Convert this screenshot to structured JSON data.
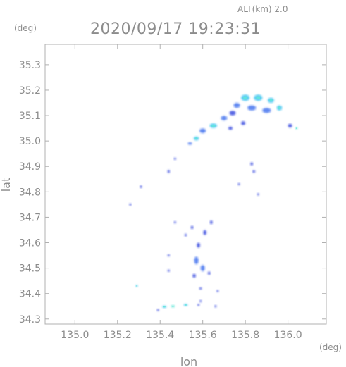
{
  "chart_data": {
    "type": "scatter",
    "title": "2020/09/17 19:23:31",
    "subtitle": "ALT(km)  2.0",
    "xlabel": "lon",
    "ylabel": "lat",
    "x_unit": "(deg)",
    "y_unit": "(deg)",
    "xlim": [
      134.86,
      136.18
    ],
    "ylim": [
      34.28,
      35.38
    ],
    "x_ticks": [
      135.0,
      135.2,
      135.4,
      135.6,
      135.8,
      136.0
    ],
    "x_tick_labels": [
      "135.0",
      "135.2",
      "135.4",
      "135.6",
      "135.8",
      "136.0"
    ],
    "y_ticks": [
      34.3,
      34.4,
      34.5,
      34.6,
      34.7,
      34.8,
      34.9,
      35.0,
      35.1,
      35.2,
      35.3
    ],
    "y_tick_labels": [
      "34.3",
      "34.4",
      "34.5",
      "34.6",
      "34.7",
      "34.8",
      "34.9",
      "35.0",
      "35.1",
      "35.2",
      "35.3"
    ],
    "grid": false,
    "colors": {
      "low": "#3d4fe0",
      "mid": "#4f7cf0",
      "high": "#46c7f2",
      "peak": "#63e6d8"
    },
    "cells": [
      {
        "lon": 135.8,
        "lat": 35.17,
        "sx": 0.04,
        "sy": 0.025,
        "level": "high"
      },
      {
        "lon": 135.86,
        "lat": 35.17,
        "sx": 0.04,
        "sy": 0.025,
        "level": "high"
      },
      {
        "lon": 135.92,
        "lat": 35.16,
        "sx": 0.03,
        "sy": 0.02,
        "level": "high"
      },
      {
        "lon": 135.96,
        "lat": 35.13,
        "sx": 0.025,
        "sy": 0.02,
        "level": "high"
      },
      {
        "lon": 135.9,
        "lat": 35.12,
        "sx": 0.04,
        "sy": 0.02,
        "level": "mid"
      },
      {
        "lon": 135.83,
        "lat": 35.13,
        "sx": 0.04,
        "sy": 0.02,
        "level": "mid"
      },
      {
        "lon": 135.76,
        "lat": 35.14,
        "sx": 0.03,
        "sy": 0.02,
        "level": "mid"
      },
      {
        "lon": 135.74,
        "lat": 35.11,
        "sx": 0.03,
        "sy": 0.018,
        "level": "low"
      },
      {
        "lon": 135.7,
        "lat": 35.09,
        "sx": 0.03,
        "sy": 0.018,
        "level": "mid"
      },
      {
        "lon": 135.65,
        "lat": 35.06,
        "sx": 0.035,
        "sy": 0.018,
        "level": "high"
      },
      {
        "lon": 135.6,
        "lat": 35.04,
        "sx": 0.03,
        "sy": 0.018,
        "level": "mid"
      },
      {
        "lon": 135.57,
        "lat": 35.01,
        "sx": 0.025,
        "sy": 0.015,
        "level": "high"
      },
      {
        "lon": 135.54,
        "lat": 34.99,
        "sx": 0.02,
        "sy": 0.01,
        "level": "mid"
      },
      {
        "lon": 135.79,
        "lat": 35.07,
        "sx": 0.02,
        "sy": 0.015,
        "level": "low"
      },
      {
        "lon": 135.73,
        "lat": 35.05,
        "sx": 0.02,
        "sy": 0.012,
        "level": "low"
      },
      {
        "lon": 136.01,
        "lat": 35.06,
        "sx": 0.02,
        "sy": 0.015,
        "level": "low"
      },
      {
        "lon": 136.04,
        "lat": 35.05,
        "sx": 0.008,
        "sy": 0.008,
        "level": "peak"
      },
      {
        "lon": 135.44,
        "lat": 34.88,
        "sx": 0.01,
        "sy": 0.012,
        "level": "low"
      },
      {
        "lon": 135.31,
        "lat": 34.82,
        "sx": 0.01,
        "sy": 0.01,
        "level": "low"
      },
      {
        "lon": 135.47,
        "lat": 34.93,
        "sx": 0.006,
        "sy": 0.006,
        "level": "low"
      },
      {
        "lon": 135.26,
        "lat": 34.75,
        "sx": 0.005,
        "sy": 0.006,
        "level": "low"
      },
      {
        "lon": 135.83,
        "lat": 34.91,
        "sx": 0.012,
        "sy": 0.012,
        "level": "low"
      },
      {
        "lon": 135.84,
        "lat": 34.88,
        "sx": 0.012,
        "sy": 0.01,
        "level": "low"
      },
      {
        "lon": 135.77,
        "lat": 34.83,
        "sx": 0.005,
        "sy": 0.006,
        "level": "low"
      },
      {
        "lon": 135.86,
        "lat": 34.79,
        "sx": 0.004,
        "sy": 0.005,
        "level": "low"
      },
      {
        "lon": 135.64,
        "lat": 34.68,
        "sx": 0.012,
        "sy": 0.015,
        "level": "low"
      },
      {
        "lon": 135.61,
        "lat": 34.64,
        "sx": 0.015,
        "sy": 0.02,
        "level": "low"
      },
      {
        "lon": 135.55,
        "lat": 34.66,
        "sx": 0.012,
        "sy": 0.012,
        "level": "low"
      },
      {
        "lon": 135.52,
        "lat": 34.63,
        "sx": 0.01,
        "sy": 0.01,
        "level": "low"
      },
      {
        "lon": 135.58,
        "lat": 34.59,
        "sx": 0.015,
        "sy": 0.02,
        "level": "low"
      },
      {
        "lon": 135.57,
        "lat": 34.53,
        "sx": 0.02,
        "sy": 0.03,
        "level": "mid"
      },
      {
        "lon": 135.6,
        "lat": 34.5,
        "sx": 0.02,
        "sy": 0.025,
        "level": "mid"
      },
      {
        "lon": 135.56,
        "lat": 34.47,
        "sx": 0.015,
        "sy": 0.015,
        "level": "low"
      },
      {
        "lon": 135.63,
        "lat": 34.48,
        "sx": 0.012,
        "sy": 0.012,
        "level": "low"
      },
      {
        "lon": 135.47,
        "lat": 34.68,
        "sx": 0.005,
        "sy": 0.006,
        "level": "low"
      },
      {
        "lon": 135.44,
        "lat": 34.55,
        "sx": 0.005,
        "sy": 0.006,
        "level": "low"
      },
      {
        "lon": 135.44,
        "lat": 34.49,
        "sx": 0.004,
        "sy": 0.005,
        "level": "low"
      },
      {
        "lon": 135.67,
        "lat": 34.41,
        "sx": 0.005,
        "sy": 0.006,
        "level": "low"
      },
      {
        "lon": 135.59,
        "lat": 34.42,
        "sx": 0.012,
        "sy": 0.006,
        "level": "low"
      },
      {
        "lon": 135.29,
        "lat": 34.43,
        "sx": 0.006,
        "sy": 0.005,
        "level": "high"
      },
      {
        "lon": 135.39,
        "lat": 34.335,
        "sx": 0.01,
        "sy": 0.006,
        "level": "low"
      },
      {
        "lon": 135.42,
        "lat": 34.348,
        "sx": 0.02,
        "sy": 0.006,
        "level": "high"
      },
      {
        "lon": 135.46,
        "lat": 34.35,
        "sx": 0.02,
        "sy": 0.006,
        "level": "peak"
      },
      {
        "lon": 135.52,
        "lat": 34.355,
        "sx": 0.02,
        "sy": 0.006,
        "level": "high"
      },
      {
        "lon": 135.58,
        "lat": 34.355,
        "sx": 0.01,
        "sy": 0.006,
        "level": "low"
      },
      {
        "lon": 135.59,
        "lat": 34.37,
        "sx": 0.006,
        "sy": 0.005,
        "level": "low"
      },
      {
        "lon": 135.66,
        "lat": 34.35,
        "sx": 0.003,
        "sy": 0.004,
        "level": "low"
      }
    ]
  }
}
